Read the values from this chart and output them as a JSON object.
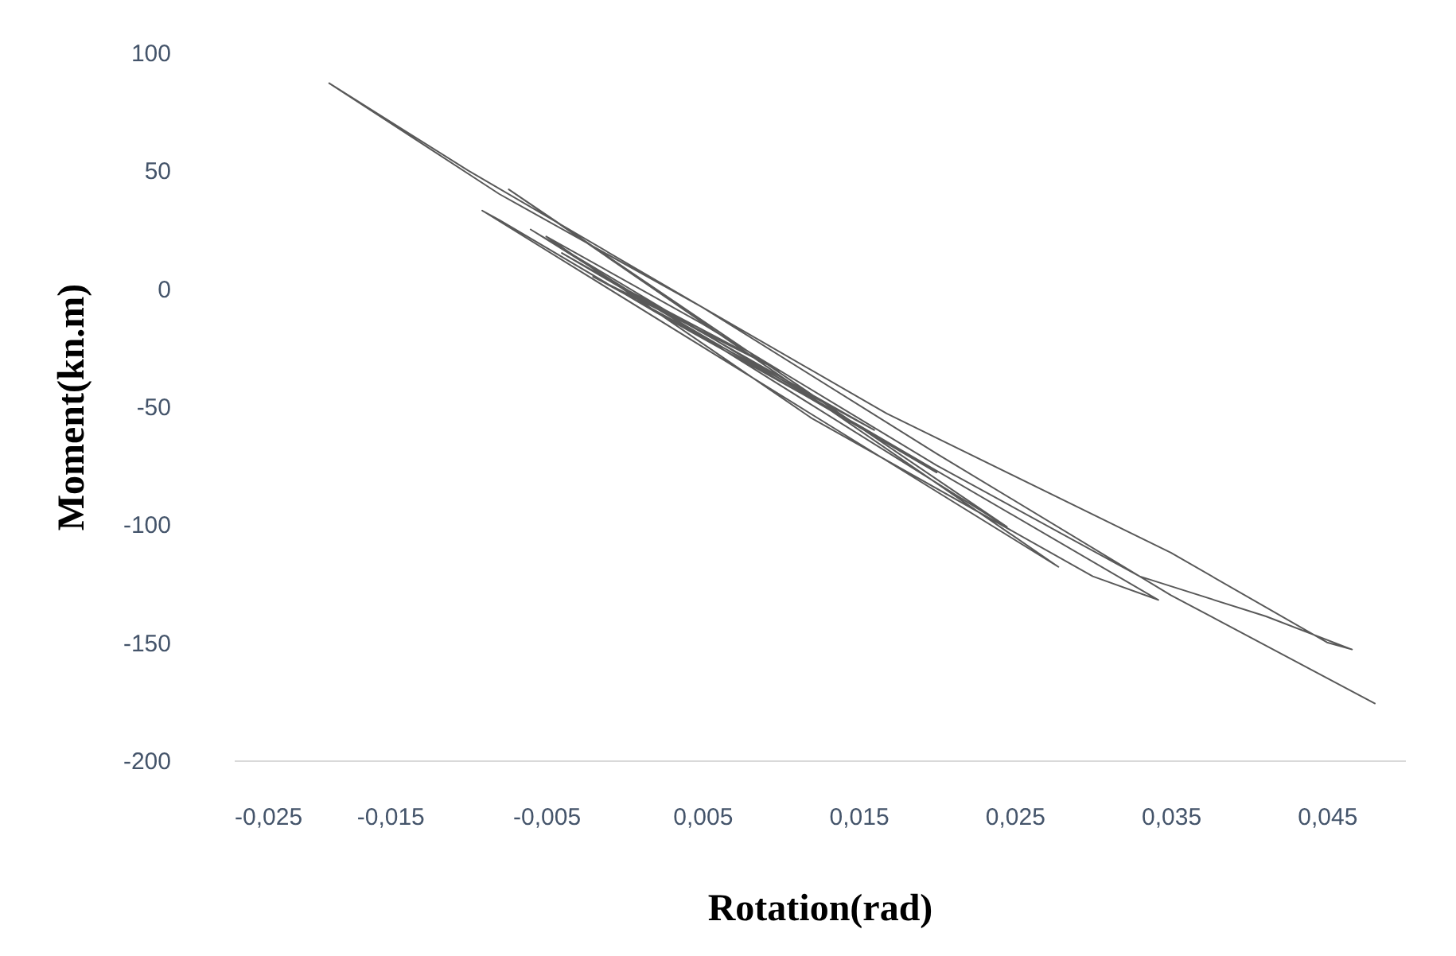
{
  "chart_data": {
    "type": "line",
    "xlabel": "Rotation(rad)",
    "ylabel": "Moment(kn.m)",
    "xlim": [
      -0.025,
      0.05
    ],
    "ylim": [
      -200,
      100
    ],
    "xticks": [
      {
        "value": -0.025,
        "label": "-0,025"
      },
      {
        "value": -0.015,
        "label": "-0,015"
      },
      {
        "value": -0.005,
        "label": "-0,005"
      },
      {
        "value": 0.005,
        "label": "0,005"
      },
      {
        "value": 0.015,
        "label": "0,015"
      },
      {
        "value": 0.025,
        "label": "0,025"
      },
      {
        "value": 0.035,
        "label": "0,035"
      },
      {
        "value": 0.045,
        "label": "0,045"
      }
    ],
    "yticks": [
      -200,
      -150,
      -100,
      -50,
      0,
      50,
      100
    ],
    "grid": false,
    "legend": false,
    "marker": "none",
    "line_style": "solid",
    "series": [
      {
        "color": "#595959",
        "x": [
          0,
          0.01,
          -0.002,
          0.016,
          -0.004,
          0.02,
          -0.006,
          0.0245,
          -0.0074,
          0.0278,
          -0.0091,
          -0.008,
          0.002,
          0.015,
          0.0342,
          0.03,
          0.012,
          -0.005,
          0.005,
          0.02,
          0.033,
          0.0411,
          0.0466,
          0.045,
          0.035,
          0.0168,
          0.005,
          -0.008,
          -0.0189,
          -0.01,
          0.005,
          0.02,
          0.035,
          0.0481
        ],
        "values": [
          0,
          -35,
          5,
          -60,
          15,
          -78,
          25,
          -101,
          42,
          -118,
          33,
          29,
          -10,
          -58,
          -132,
          -122,
          -55,
          22,
          -15,
          -75,
          -122,
          -139,
          -153,
          -150,
          -112,
          -53,
          -8,
          40,
          87,
          50,
          -8,
          -70,
          -130,
          -176
        ]
      }
    ]
  }
}
